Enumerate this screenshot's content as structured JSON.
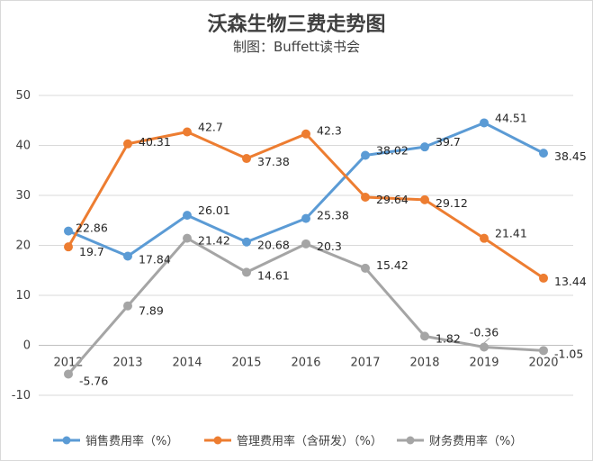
{
  "chart_data": {
    "type": "line",
    "title": "沃森生物三费走势图",
    "subtitle": "制图：Buffett读书会",
    "categories": [
      "2012",
      "2013",
      "2014",
      "2015",
      "2016",
      "2017",
      "2018",
      "2019",
      "2020"
    ],
    "ylim": [
      -10,
      50
    ],
    "yticks": [
      -10,
      0,
      10,
      20,
      30,
      40,
      50
    ],
    "ytick_labels": [
      "-10",
      "0",
      "10",
      "20",
      "30",
      "40",
      "50"
    ],
    "grid": true,
    "legend_position": "bottom",
    "series": [
      {
        "name": "销售费用率（%）",
        "color": "#5b9bd5",
        "values": [
          22.86,
          17.84,
          26.01,
          20.68,
          25.38,
          38.02,
          39.7,
          44.51,
          38.45
        ],
        "labels": [
          "22.86",
          "17.84",
          "26.01",
          "20.68",
          "25.38",
          "38.02",
          "39.7",
          "44.51",
          "38.45"
        ]
      },
      {
        "name": "管理费用率（含研发）（%）",
        "color": "#ed7d31",
        "values": [
          19.7,
          40.31,
          42.7,
          37.38,
          42.3,
          29.64,
          29.12,
          21.41,
          13.44
        ],
        "labels": [
          "19.7",
          "40.31",
          "42.7",
          "37.38",
          "42.3",
          "29.64",
          "29.12",
          "21.41",
          "13.44"
        ]
      },
      {
        "name": "财务费用率（%）",
        "color": "#a5a5a5",
        "values": [
          -5.76,
          7.89,
          21.42,
          14.61,
          20.3,
          15.42,
          1.82,
          -0.36,
          -1.05
        ],
        "labels": [
          "-5.76",
          "7.89",
          "21.42",
          "14.61",
          "20.3",
          "15.42",
          "1.82",
          "-0.36",
          "-1.05"
        ]
      }
    ]
  }
}
